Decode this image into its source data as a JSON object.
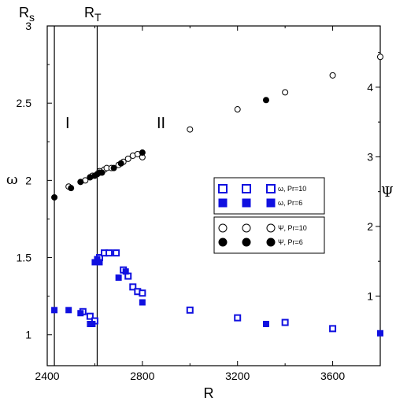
{
  "chart_data": {
    "type": "scatter",
    "xlabel": "R",
    "ylabel_left": "ω",
    "ylabel_right": "Ψ",
    "xlim": [
      2400,
      3800
    ],
    "ylim_left": [
      0.8,
      3.0
    ],
    "ylim_right": [
      0.0,
      4.88
    ],
    "x_ticks": [
      2400,
      2800,
      3200,
      3600
    ],
    "y_left_ticks": [
      1,
      1.5,
      2,
      2.5,
      3
    ],
    "y_right_ticks": [
      1,
      2,
      3,
      4
    ],
    "vertical_lines": [
      {
        "name": "Rs",
        "label_main": "R",
        "label_sub": "s",
        "x": 2430
      },
      {
        "name": "RT",
        "label_main": "R",
        "label_sub": "T",
        "x": 2610
      }
    ],
    "region_labels": [
      {
        "text": "I",
        "x": 2510,
        "y": 2.6
      },
      {
        "text": "II",
        "x": 2900,
        "y": 2.6
      }
    ],
    "series": [
      {
        "name": "ω, Pr=10",
        "marker": "square-open",
        "color": "#1010e0",
        "axis": "left",
        "x": [
          2550,
          2580,
          2600,
          2620,
          2640,
          2660,
          2690,
          2720,
          2740,
          2760,
          2780,
          2800,
          3000,
          3200,
          3400,
          3600
        ],
        "y": [
          1.15,
          1.12,
          1.09,
          1.5,
          1.53,
          1.53,
          1.53,
          1.42,
          1.38,
          1.31,
          1.28,
          1.27,
          1.16,
          1.11,
          1.08,
          1.04
        ]
      },
      {
        "name": "ω, Pr=6",
        "marker": "square-filled",
        "color": "#1010e0",
        "axis": "left",
        "x": [
          2430,
          2490,
          2540,
          2580,
          2590,
          2600,
          2610,
          2620,
          2700,
          2730,
          2800,
          3320,
          3800
        ],
        "y": [
          1.16,
          1.16,
          1.14,
          1.07,
          1.07,
          1.47,
          1.49,
          1.47,
          1.37,
          1.41,
          1.21,
          1.07,
          1.01
        ]
      },
      {
        "name": "Ψ, Pr=10",
        "marker": "circle-open",
        "color": "#000000",
        "axis": "left",
        "x": [
          2490,
          2560,
          2580,
          2590,
          2620,
          2640,
          2650,
          2670,
          2700,
          2720,
          2740,
          2760,
          2780,
          2800,
          3000,
          3200,
          3400,
          3600,
          3800
        ],
        "y": [
          1.96,
          2.0,
          2.02,
          2.03,
          2.06,
          2.07,
          2.08,
          2.08,
          2.1,
          2.12,
          2.14,
          2.16,
          2.17,
          2.15,
          2.33,
          2.46,
          2.57,
          2.68,
          2.8
        ]
      },
      {
        "name": "Ψ, Pr=6",
        "marker": "circle-filled",
        "color": "#000000",
        "axis": "left",
        "x": [
          2430,
          2500,
          2540,
          2580,
          2600,
          2610,
          2620,
          2630,
          2680,
          2710,
          2800,
          3320
        ],
        "y": [
          1.89,
          1.95,
          1.99,
          2.02,
          2.03,
          2.04,
          2.05,
          2.05,
          2.08,
          2.11,
          2.18,
          2.52
        ]
      }
    ],
    "legend": [
      {
        "series": 0,
        "text": "ω, Pr=10"
      },
      {
        "series": 1,
        "text": "ω, Pr=6"
      },
      {
        "series": 2,
        "text": "Ψ, Pr=10"
      },
      {
        "series": 3,
        "text": "Ψ, Pr=6"
      }
    ]
  }
}
